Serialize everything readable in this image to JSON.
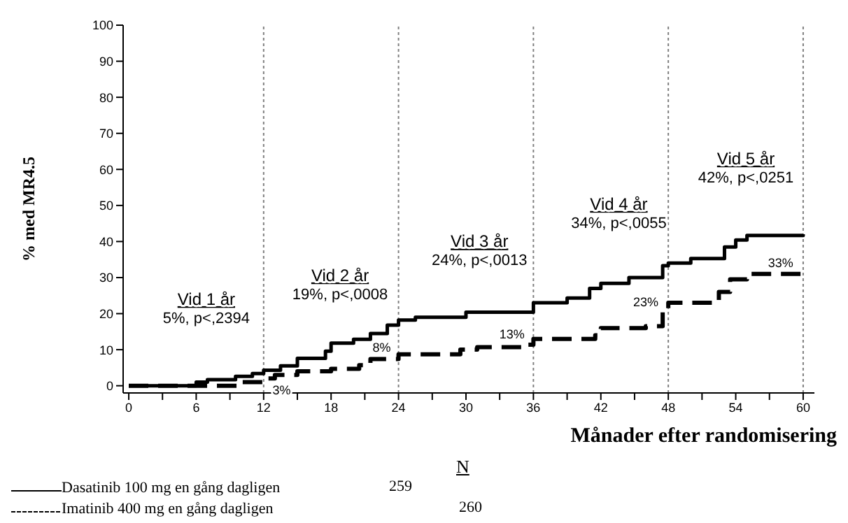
{
  "chart_data": {
    "type": "step",
    "xlabel": "Månader efter randomisering",
    "ylabel": "% med MR4.5",
    "xlim": [
      -0.5,
      61
    ],
    "ylim": [
      -2,
      100
    ],
    "xticks": [
      0,
      {
        "value": 3,
        "label": null
      },
      6,
      {
        "value": 9,
        "label": null
      },
      12,
      {
        "value": 15,
        "label": null
      },
      18,
      {
        "value": 21,
        "label": null
      },
      24,
      {
        "value": 27,
        "label": null
      },
      30,
      {
        "value": 33,
        "label": null
      },
      36,
      {
        "value": 39,
        "label": null
      },
      42,
      {
        "value": 45,
        "label": null
      },
      48,
      {
        "value": 51,
        "label": null
      },
      54,
      {
        "value": 57,
        "label": null
      },
      60
    ],
    "yticks": [
      0,
      10,
      20,
      30,
      40,
      50,
      60,
      70,
      80,
      90,
      100
    ],
    "legend": "bottom",
    "marker": "none",
    "series": [
      {
        "name": "Dasatinib 100 mg en gång dagligen",
        "color": "#000000",
        "line_style": "solid",
        "x": [
          0,
          6,
          7,
          9.5,
          11,
          12,
          13.5,
          15,
          17.5,
          18,
          20,
          21.5,
          23,
          24,
          25.5,
          30,
          36,
          39,
          41,
          42,
          44.5,
          47.5,
          48,
          50,
          53,
          54,
          55,
          60
        ],
        "values": [
          0,
          1,
          1.7,
          2.6,
          3.4,
          4.3,
          5.5,
          7.6,
          9.6,
          11.8,
          12.9,
          14.5,
          16.8,
          18.2,
          19,
          20.4,
          23,
          24.3,
          27,
          28.4,
          30,
          33.3,
          34,
          35.3,
          38.5,
          40.4,
          41.7,
          42
        ]
      },
      {
        "name": "Imatinib 400 mg en gång dagligen",
        "color": "#000000",
        "line_style": "dashed",
        "x": [
          0,
          10,
          12,
          13,
          15,
          18,
          20.5,
          21.5,
          24,
          29.5,
          31,
          35.5,
          36,
          41.5,
          42,
          46,
          47.5,
          48,
          52.5,
          53.5,
          55,
          60
        ],
        "values": [
          0,
          1,
          2,
          3,
          4,
          4.7,
          5.7,
          7.4,
          8.7,
          10,
          10.7,
          11.4,
          13,
          14,
          16,
          16.5,
          20.4,
          23,
          26,
          29.5,
          31,
          31
        ]
      }
    ],
    "ref_lines": [
      {
        "axis": "x",
        "value": 12,
        "color": "#808080",
        "line_style": "dotted"
      },
      {
        "axis": "x",
        "value": 24,
        "color": "#808080",
        "line_style": "dotted"
      },
      {
        "axis": "x",
        "value": 36,
        "color": "#808080",
        "line_style": "dotted"
      },
      {
        "axis": "x",
        "value": 48,
        "color": "#808080",
        "line_style": "dotted"
      },
      {
        "axis": "x",
        "value": 60,
        "color": "#808080",
        "line_style": "dotted"
      }
    ],
    "annotations": [
      "Vid 1 år\n5%, p<,2394",
      "Vid 2 år\n19%, p<,0008",
      "Vid 3 år\n24%, p<,0013",
      "Vid 4 år\n34%, p<,0055",
      "Vid 5 år\n42%, p<,0251",
      "3%",
      "8%",
      "13%",
      "23%",
      "33%",
      "N",
      "259",
      "260"
    ]
  }
}
